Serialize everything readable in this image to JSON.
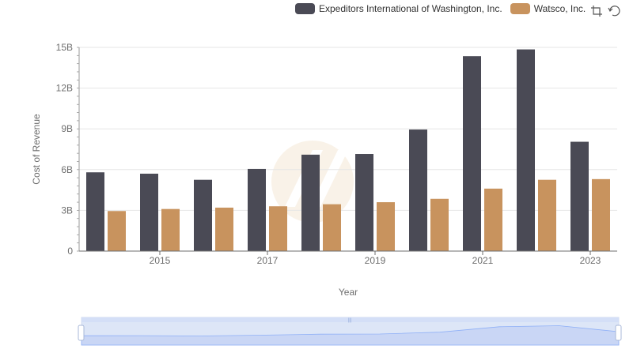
{
  "chart_data": {
    "type": "bar",
    "ylabel": "Cost of Revenue",
    "xlabel": "Year",
    "categories": [
      "2014",
      "2015",
      "2016",
      "2017",
      "2018",
      "2019",
      "2020",
      "2021",
      "2022",
      "2023"
    ],
    "x_tick_labels": [
      "2015",
      "2017",
      "2019",
      "2021",
      "2023"
    ],
    "y_tick_labels": [
      "0",
      "3B",
      "6B",
      "9B",
      "12B",
      "15B"
    ],
    "ylim": [
      0,
      15000000000
    ],
    "grid": true,
    "legend_position": "top-right",
    "series": [
      {
        "name": "Expeditors International of Washington, Inc.",
        "color": "#4a4a55",
        "values": [
          5800000000,
          5700000000,
          5250000000,
          6050000000,
          7100000000,
          7150000000,
          8950000000,
          14350000000,
          14850000000,
          8050000000
        ]
      },
      {
        "name": "Watsco, Inc.",
        "color": "#c8935e",
        "values": [
          2950000000,
          3100000000,
          3200000000,
          3300000000,
          3450000000,
          3600000000,
          3850000000,
          4600000000,
          5250000000,
          5300000000
        ]
      }
    ]
  },
  "toolbox": {
    "icons": [
      "zoom-icon",
      "restore-icon"
    ]
  }
}
